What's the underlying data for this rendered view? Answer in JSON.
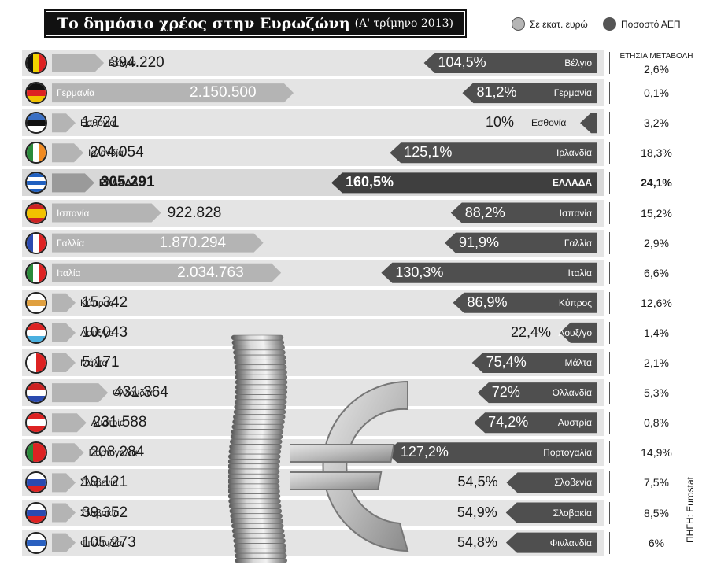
{
  "title": "Το δημόσιο χρέος στην Ευρωζώνη",
  "subtitle": "(Α' τρίμηνο 2013)",
  "legend": [
    {
      "label": "Σε εκατ. ευρώ",
      "color": "#b5b5b5"
    },
    {
      "label": "Ποσοστό ΑΕΠ",
      "color": "#555555"
    }
  ],
  "change_column_header": "ΕΤΗΣΙΑ ΜΕΤΑΒΟΛΗ",
  "source": "ΠΗΓΗ: Eurostat",
  "colors": {
    "light_bar": "#b4b4b4",
    "dark_bar": "#4f4f4f",
    "row_bg": "#e4e4e4",
    "highlight": "#555555"
  },
  "chart_data": {
    "type": "bar",
    "series": [
      {
        "name": "Σε εκατ. ευρώ",
        "unit": "εκατ. ευρώ"
      },
      {
        "name": "Ποσοστό ΑΕΠ",
        "unit": "%"
      }
    ],
    "rows": [
      {
        "country": "Βέλγιο",
        "flag": "belgium",
        "debt_label": "394.220",
        "debt": 394220,
        "gdp_label": "104,5%",
        "gdp": 104.5,
        "change": "2,6%"
      },
      {
        "country": "Γερμανία",
        "flag": "germany",
        "debt_label": "2.150.500",
        "debt": 2150500,
        "gdp_label": "81,2%",
        "gdp": 81.2,
        "change": "0,1%"
      },
      {
        "country": "Εσθονία",
        "flag": "estonia",
        "debt_label": "1.721",
        "debt": 1721,
        "gdp_label": "10%",
        "gdp": 10,
        "change": "3,2%"
      },
      {
        "country": "Ιρλανδία",
        "flag": "ireland",
        "debt_label": "204.054",
        "debt": 204054,
        "gdp_label": "125,1%",
        "gdp": 125.1,
        "change": "18,3%"
      },
      {
        "country": "ΕΛΛΑΔΑ",
        "flag": "greece",
        "debt_label": "305.291",
        "debt": 305291,
        "gdp_label": "160,5%",
        "gdp": 160.5,
        "change": "24,1%",
        "highlight": true
      },
      {
        "country": "Ισπανία",
        "flag": "spain",
        "debt_label": "922.828",
        "debt": 922828,
        "gdp_label": "88,2%",
        "gdp": 88.2,
        "change": "15,2%"
      },
      {
        "country": "Γαλλία",
        "flag": "france",
        "debt_label": "1.870.294",
        "debt": 1870294,
        "gdp_label": "91,9%",
        "gdp": 91.9,
        "change": "2,9%"
      },
      {
        "country": "Ιταλία",
        "flag": "italy",
        "debt_label": "2.034.763",
        "debt": 2034763,
        "gdp_label": "130,3%",
        "gdp": 130.3,
        "change": "6,6%"
      },
      {
        "country": "Κύπρος",
        "flag": "cyprus",
        "debt_label": "15.342",
        "debt": 15342,
        "gdp_label": "86,9%",
        "gdp": 86.9,
        "change": "12,6%"
      },
      {
        "country": "Λουξ/γο",
        "flag": "luxembourg",
        "debt_label": "10.043",
        "debt": 10043,
        "gdp_label": "22,4%",
        "gdp": 22.4,
        "change": "1,4%"
      },
      {
        "country": "Μάλτα",
        "flag": "malta",
        "debt_label": "5.171",
        "debt": 5171,
        "gdp_label": "75,4%",
        "gdp": 75.4,
        "change": "2,1%"
      },
      {
        "country": "Ολλανδία",
        "flag": "netherlands",
        "debt_label": "431.364",
        "debt": 431364,
        "gdp_label": "72%",
        "gdp": 72,
        "change": "5,3%"
      },
      {
        "country": "Αυστρία",
        "flag": "austria",
        "debt_label": "231.588",
        "debt": 231588,
        "gdp_label": "74,2%",
        "gdp": 74.2,
        "change": "0,8%"
      },
      {
        "country": "Πορτογαλία",
        "flag": "portugal",
        "debt_label": "208.284",
        "debt": 208284,
        "gdp_label": "127,2%",
        "gdp": 127.2,
        "change": "14,9%"
      },
      {
        "country": "Σλοβενία",
        "flag": "slovenia",
        "debt_label": "19.121",
        "debt": 19121,
        "gdp_label": "54,5%",
        "gdp": 54.5,
        "change": "7,5%"
      },
      {
        "country": "Σλοβακία",
        "flag": "slovakia",
        "debt_label": "39.352",
        "debt": 39352,
        "gdp_label": "54,9%",
        "gdp": 54.9,
        "change": "8,5%"
      },
      {
        "country": "Φινλανδία",
        "flag": "finland",
        "debt_label": "105.273",
        "debt": 105273,
        "gdp_label": "54,8%",
        "gdp": 54.8,
        "change": "6%"
      }
    ]
  }
}
